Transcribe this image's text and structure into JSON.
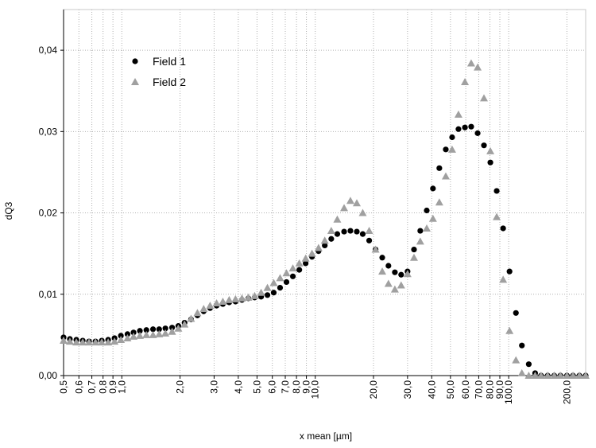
{
  "chart_data": {
    "type": "scatter",
    "x_label": "x mean [µm]",
    "y_label": "dQ3",
    "x_log": true,
    "grid": true,
    "legend": "top-left",
    "x": [
      0.5,
      0.539,
      0.582,
      0.628,
      0.677,
      0.731,
      0.788,
      0.85,
      0.917,
      0.989,
      1.07,
      1.15,
      1.24,
      1.34,
      1.45,
      1.56,
      1.68,
      1.82,
      1.96,
      2.11,
      2.28,
      2.46,
      2.65,
      2.86,
      3.09,
      3.33,
      3.59,
      3.87,
      4.18,
      4.51,
      4.86,
      5.25,
      5.66,
      6.1,
      6.58,
      7.1,
      7.66,
      8.27,
      8.92,
      9.62,
      10.4,
      11.2,
      12.1,
      13,
      14.1,
      15.2,
      16.4,
      17.6,
      19,
      20.5,
      22.2,
      23.9,
      25.8,
      27.8,
      30,
      32.4,
      34.9,
      37.7,
      40.6,
      43.8,
      47.3,
      51,
      55,
      59.4,
      64,
      69.1,
      74.5,
      80.4,
      86.7,
      93.6,
      101,
      109,
      117,
      127,
      137,
      147,
      159,
      172,
      185,
      200,
      215,
      232,
      250
    ],
    "series": [
      {
        "name": "Field 1",
        "color": "#000000",
        "marker": "circle",
        "values": [
          0.0047,
          0.0045,
          0.0044,
          0.0043,
          0.0042,
          0.0042,
          0.0043,
          0.0044,
          0.0046,
          0.0049,
          0.0051,
          0.0053,
          0.0055,
          0.0056,
          0.0057,
          0.0057,
          0.0058,
          0.0059,
          0.0061,
          0.0065,
          0.0069,
          0.0074,
          0.0079,
          0.0083,
          0.0086,
          0.0088,
          0.009,
          0.0091,
          0.0093,
          0.0095,
          0.0096,
          0.0097,
          0.0099,
          0.0102,
          0.0108,
          0.0115,
          0.0122,
          0.013,
          0.0138,
          0.0146,
          0.0153,
          0.016,
          0.0168,
          0.0174,
          0.0177,
          0.0178,
          0.0177,
          0.0174,
          0.0166,
          0.0155,
          0.0145,
          0.0135,
          0.0127,
          0.0124,
          0.0128,
          0.0155,
          0.0178,
          0.0203,
          0.023,
          0.0255,
          0.0278,
          0.0293,
          0.0303,
          0.0305,
          0.0306,
          0.0298,
          0.0283,
          0.0262,
          0.0227,
          0.0181,
          0.0128,
          0.0077,
          0.0037,
          0.0014,
          0.0003,
          0,
          0,
          0,
          0,
          0,
          0,
          0,
          0
        ]
      },
      {
        "name": "Field 2",
        "color": "#a0a0a0",
        "marker": "triangle",
        "values": [
          0.0043,
          0.0042,
          0.0041,
          0.0041,
          0.0041,
          0.0041,
          0.0041,
          0.0041,
          0.0042,
          0.0044,
          0.0046,
          0.0048,
          0.0049,
          0.005,
          0.005,
          0.0051,
          0.0052,
          0.0054,
          0.0058,
          0.0063,
          0.007,
          0.0077,
          0.0082,
          0.0086,
          0.0089,
          0.0091,
          0.0093,
          0.0094,
          0.0095,
          0.0096,
          0.0098,
          0.0102,
          0.0108,
          0.0114,
          0.012,
          0.0126,
          0.0132,
          0.0138,
          0.0144,
          0.015,
          0.0157,
          0.0166,
          0.0178,
          0.0192,
          0.0206,
          0.0215,
          0.0212,
          0.02,
          0.0178,
          0.0155,
          0.0128,
          0.0113,
          0.0106,
          0.0111,
          0.0125,
          0.0145,
          0.0165,
          0.0181,
          0.0193,
          0.0213,
          0.0245,
          0.0278,
          0.0321,
          0.0361,
          0.0384,
          0.0379,
          0.0341,
          0.0276,
          0.0195,
          0.0118,
          0.0055,
          0.0019,
          0.0003,
          0,
          0,
          0,
          0,
          0,
          0,
          0,
          0,
          0,
          0
        ]
      }
    ],
    "xlim": [
      0.5,
      250
    ],
    "xticks": [
      {
        "value": 0.5,
        "label": "0,5"
      },
      {
        "value": 0.6,
        "label": "0,6"
      },
      {
        "value": 0.7,
        "label": "0,7"
      },
      {
        "value": 0.8,
        "label": "0,8"
      },
      {
        "value": 0.9,
        "label": "0,9"
      },
      {
        "value": 1,
        "label": "1,0"
      },
      {
        "value": 2,
        "label": "2,0"
      },
      {
        "value": 3,
        "label": "3,0"
      },
      {
        "value": 4,
        "label": "4,0"
      },
      {
        "value": 5,
        "label": "5,0"
      },
      {
        "value": 6,
        "label": "6,0"
      },
      {
        "value": 7,
        "label": "7,0"
      },
      {
        "value": 8,
        "label": "8,0"
      },
      {
        "value": 9,
        "label": "9,0"
      },
      {
        "value": 10,
        "label": "10,0"
      },
      {
        "value": 20,
        "label": "20,0"
      },
      {
        "value": 30,
        "label": "30,0"
      },
      {
        "value": 40,
        "label": "40,0"
      },
      {
        "value": 50,
        "label": "50,0"
      },
      {
        "value": 60,
        "label": "60,0"
      },
      {
        "value": 70,
        "label": "70,0"
      },
      {
        "value": 80,
        "label": "80,0"
      },
      {
        "value": 90,
        "label": "90,0"
      },
      {
        "value": 100,
        "label": "100,0"
      },
      {
        "value": 200,
        "label": "200,0"
      }
    ],
    "ylim": [
      0,
      0.045
    ],
    "yticks": [
      {
        "value": 0,
        "label": "0,00"
      },
      {
        "value": 0.01,
        "label": "0,01"
      },
      {
        "value": 0.02,
        "label": "0,02"
      },
      {
        "value": 0.03,
        "label": "0,03"
      },
      {
        "value": 0.04,
        "label": "0,04"
      }
    ]
  }
}
